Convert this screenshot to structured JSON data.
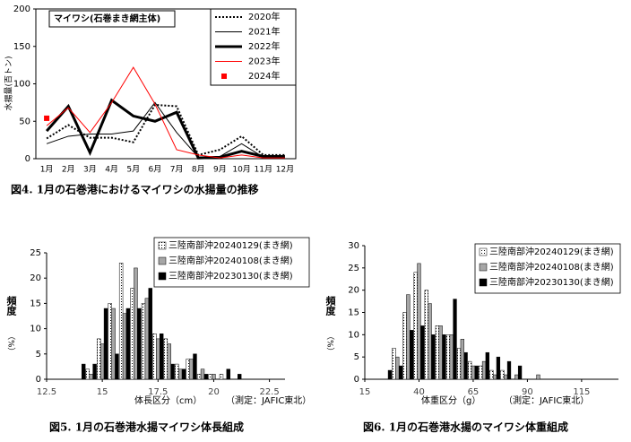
{
  "chart_data": [
    {
      "type": "line",
      "title": "マイワシ(石巻まき網主体)",
      "ylabel": "水揚量(百トン)",
      "caption": "図4. 1月の石巻港におけるマイワシの水揚量の推移",
      "categories": [
        "1月",
        "2月",
        "3月",
        "4月",
        "5月",
        "6月",
        "7月",
        "8月",
        "9月",
        "10月",
        "11月",
        "12月"
      ],
      "ylim": [
        0,
        200
      ],
      "yticks": [
        0,
        50,
        100,
        150,
        200
      ],
      "series": [
        {
          "name": "2020年",
          "color": "#000000",
          "dash": "dotted",
          "width": 2,
          "values": [
            27,
            45,
            28,
            28,
            22,
            72,
            70,
            5,
            12,
            30,
            5,
            5
          ]
        },
        {
          "name": "2021年",
          "color": "#000000",
          "width": 1,
          "values": [
            20,
            30,
            33,
            33,
            37,
            75,
            35,
            2,
            3,
            20,
            2,
            2
          ]
        },
        {
          "name": "2022年",
          "color": "#000000",
          "width": 3,
          "values": [
            37,
            70,
            8,
            78,
            57,
            50,
            62,
            1,
            2,
            10,
            3,
            3
          ]
        },
        {
          "name": "2023年",
          "color": "#ff0000",
          "width": 1,
          "values": [
            44,
            68,
            35,
            75,
            122,
            73,
            12,
            5,
            1,
            5,
            1,
            1
          ]
        },
        {
          "name": "2024年",
          "color": "#ff0000",
          "marker": "square",
          "values": [
            54,
            null,
            null,
            null,
            null,
            null,
            null,
            null,
            null,
            null,
            null,
            null
          ]
        }
      ]
    },
    {
      "type": "bar",
      "ylabel": "頻度",
      "yunit": "（%）",
      "xlabel": "体長区分（cm）",
      "note": "（測定：JAFIC東北）",
      "caption": "図5. 1月の石巻港水揚マイワシ体長組成",
      "x": [
        14.0,
        14.5,
        15.0,
        15.5,
        16.0,
        16.5,
        17.0,
        17.5,
        18.0,
        18.5,
        19.0,
        19.5,
        20.0,
        20.5,
        21.0
      ],
      "xlim": [
        12.5,
        23.2
      ],
      "xticks": [
        12.5,
        15,
        17.5,
        20,
        22.5
      ],
      "ylim": [
        0,
        25
      ],
      "yticks": [
        0,
        5,
        10,
        15,
        20,
        25
      ],
      "series": [
        {
          "name": "三陸南部沖20240129(まき網)",
          "color": "#ffffff",
          "values": [
            0,
            2,
            8,
            15,
            23,
            18,
            15,
            9,
            8,
            3,
            4,
            1,
            1,
            1,
            0
          ]
        },
        {
          "name": "三陸南部沖20240108(まき網)",
          "color": "#a6a6a6",
          "values": [
            0,
            1,
            7,
            14,
            13,
            22,
            16,
            8,
            7,
            2,
            4,
            2,
            1,
            0,
            0
          ]
        },
        {
          "name": "三陸南部沖20230130(まき網)",
          "color": "#000000",
          "values": [
            3,
            3,
            14,
            5,
            14,
            14,
            18,
            9,
            3,
            2,
            5,
            1,
            0,
            2,
            1
          ]
        }
      ]
    },
    {
      "type": "bar",
      "ylabel": "頻度",
      "yunit": "（%）",
      "xlabel": "体重区分（g）",
      "note": "（測定：JAFIC東北）",
      "caption": "図6. 1月の石巻港水揚のマイワシ体重組成",
      "x": [
        25,
        30,
        35,
        40,
        45,
        50,
        55,
        60,
        65,
        70,
        75,
        80,
        85,
        90,
        95
      ],
      "xlim": [
        15,
        132
      ],
      "xticks": [
        15,
        40,
        65,
        90,
        115
      ],
      "ylim": [
        0,
        30
      ],
      "yticks": [
        0,
        5,
        10,
        15,
        20,
        25,
        30
      ],
      "series": [
        {
          "name": "三陸南部沖20240129(まき網)",
          "color": "#ffffff",
          "values": [
            0,
            7,
            15,
            24,
            20,
            12,
            10,
            7,
            4,
            3,
            2,
            2,
            0,
            0,
            0
          ]
        },
        {
          "name": "三陸南部沖20240108(まき網)",
          "color": "#a6a6a6",
          "values": [
            0,
            5,
            19,
            26,
            17,
            12,
            10,
            9,
            3,
            4,
            1,
            1,
            1,
            0,
            1
          ]
        },
        {
          "name": "三陸南部沖20230130(まき網)",
          "color": "#000000",
          "values": [
            2,
            3,
            11,
            12,
            10,
            10,
            18,
            6,
            3,
            6,
            5,
            4,
            3,
            0,
            0
          ]
        }
      ]
    }
  ]
}
